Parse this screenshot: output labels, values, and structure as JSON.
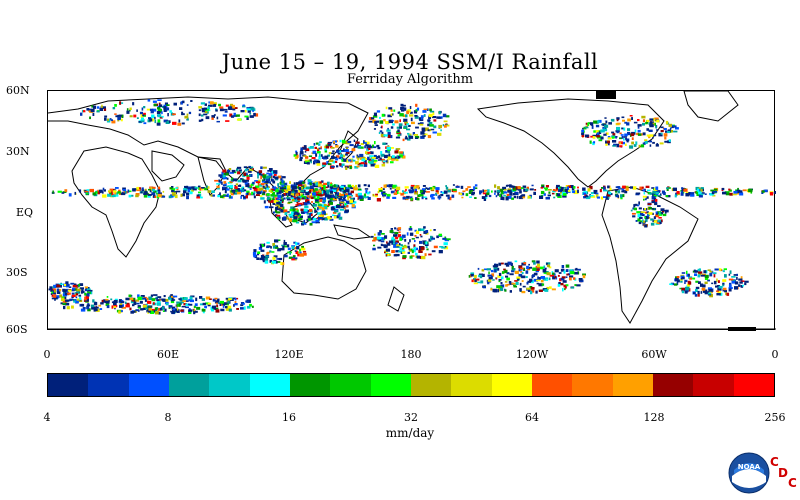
{
  "header": {
    "title": "June 15 – 19, 1994 SSM/I Rainfall",
    "subtitle": "Ferriday Algorithm"
  },
  "map": {
    "lat_labels": [
      "60N",
      "30N",
      "EQ",
      "30S",
      "60S"
    ],
    "lon_labels": [
      "0",
      "60E",
      "120E",
      "180",
      "120W",
      "60W",
      "0"
    ],
    "lat_range": [
      -60,
      60
    ],
    "lon_range": [
      0,
      360
    ]
  },
  "legend": {
    "units": "mm/day",
    "tick_labels": [
      "4",
      "8",
      "16",
      "32",
      "64",
      "128",
      "256"
    ],
    "colors": [
      "#00207a",
      "#0033b4",
      "#0050ff",
      "#00a09c",
      "#00c8c8",
      "#00ffff",
      "#009600",
      "#00c800",
      "#00ff00",
      "#b4b400",
      "#dcdc00",
      "#ffff00",
      "#ff5000",
      "#ff7800",
      "#ffa000",
      "#960000",
      "#c80000",
      "#ff0000"
    ]
  },
  "logo": {
    "name": "noaa-logo",
    "text": "NOAA",
    "letters": [
      "C",
      "D",
      "C"
    ],
    "letter_color": "#d00000"
  }
}
